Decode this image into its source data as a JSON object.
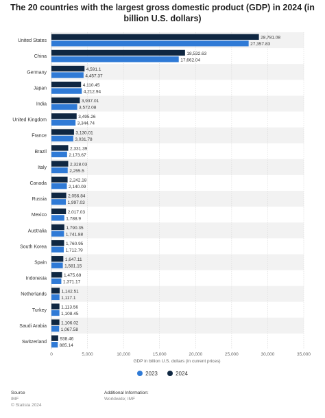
{
  "chart_data": {
    "type": "bar",
    "orientation": "horizontal",
    "title": "The 20 countries with the largest gross domestic product (GDP) in 2024 (in billion U.S. dollars)",
    "xlabel": "GDP in billion U.S. dollars (in current prices)",
    "xlim": [
      0,
      35000
    ],
    "xticks": [
      0,
      5000,
      10000,
      15000,
      20000,
      25000,
      30000,
      35000
    ],
    "xtick_labels": [
      "0",
      "5,000",
      "10,000",
      "15,000",
      "20,000",
      "25,000",
      "30,000",
      "35,000"
    ],
    "grid": "vertical",
    "legend_position": "bottom",
    "categories": [
      "United States",
      "China",
      "Germany",
      "Japan",
      "India",
      "United Kingdom",
      "France",
      "Brazil",
      "Italy",
      "Canada",
      "Russia",
      "Mexico",
      "Australia",
      "South Korea",
      "Spain",
      "Indonesia",
      "Netherlands",
      "Turkey",
      "Saudi Arabia",
      "Switzerland"
    ],
    "series": [
      {
        "name": "2024",
        "color": "#0f2742",
        "values": [
          28781.08,
          18532.63,
          4591.1,
          4110.45,
          3937.01,
          3495.26,
          3130.01,
          2331.39,
          2328.03,
          2242.18,
          2056.84,
          2017.03,
          1790.35,
          1760.95,
          1647.11,
          1475.69,
          1142.51,
          1113.56,
          1106.02,
          938.46
        ],
        "labels": [
          "28,781.08",
          "18,532.63",
          "4,591.1",
          "4,110.45",
          "3,937.01",
          "3,495.26",
          "3,130.01",
          "2,331.39",
          "2,328.03",
          "2,242.18",
          "2,056.84",
          "2,017.03",
          "1,790.35",
          "1,760.95",
          "1,647.11",
          "1,475.69",
          "1,142.51",
          "1,113.56",
          "1,106.02",
          "938.46"
        ]
      },
      {
        "name": "2023",
        "color": "#2f7ad6",
        "values": [
          27357.83,
          17662.04,
          4457.37,
          4212.94,
          3572.08,
          3344.74,
          3031.78,
          2173.67,
          2255.5,
          2140.09,
          1997.03,
          1788.9,
          1741.88,
          1712.79,
          1581.15,
          1371.17,
          1117.1,
          1108.45,
          1067.58,
          885.14
        ],
        "labels": [
          "27,357.83",
          "17,662.04",
          "4,457.37",
          "4,212.94",
          "3,572.08",
          "3,344.74",
          "3,031.78",
          "2,173.67",
          "2,255.5",
          "2,140.09",
          "1,997.03",
          "1,788.9",
          "1,741.88",
          "1,712.79",
          "1,581.15",
          "1,371.17",
          "1,117.1",
          "1,108.45",
          "1,067.58",
          "885.14"
        ]
      }
    ],
    "legend": [
      {
        "name": "2023",
        "color": "#2f7ad6"
      },
      {
        "name": "2024",
        "color": "#0f2742"
      }
    ]
  },
  "footer": {
    "source_heading": "Source",
    "source_lines": [
      "IMF",
      "© Statista 2024"
    ],
    "info_heading": "Additional Information:",
    "info_lines": [
      "Worldwide; IMF"
    ]
  }
}
